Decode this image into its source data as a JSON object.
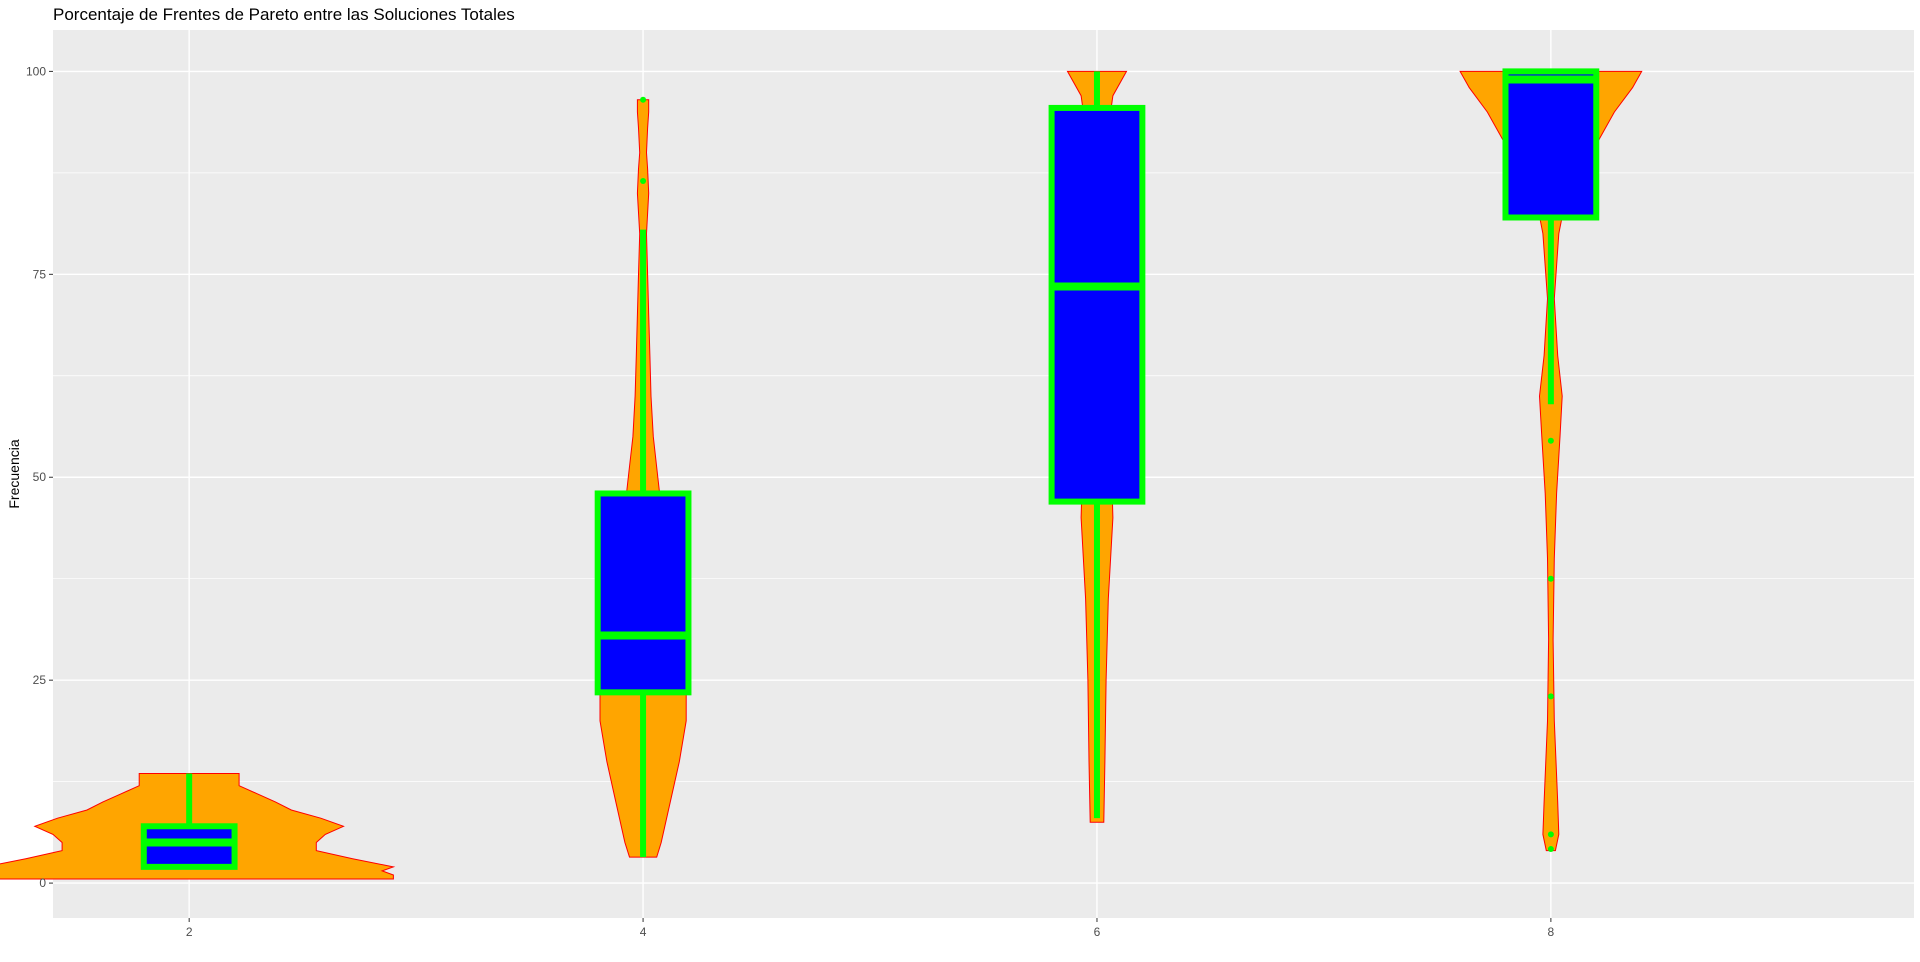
{
  "chart_data": {
    "type": "violin",
    "title": "Porcentaje de Frentes de Pareto entre las Soluciones Totales",
    "xlabel": "",
    "ylabel": "Frecuencia",
    "x_ticks": [
      "2",
      "4",
      "6",
      "8"
    ],
    "y_ticks": [
      "0",
      "25",
      "50",
      "75",
      "100"
    ],
    "xlim": [
      1.4,
      9.6
    ],
    "ylim": [
      -4.3,
      105.1
    ],
    "grid": true,
    "colors": {
      "panel_background": "#EBEBEB",
      "grid": "#FFFFFF",
      "violin_fill": "#FFA500",
      "violin_outline": "#FF0000",
      "box_fill": "#0000FF",
      "box_outline": "#00FF00",
      "outlier": "#00FF00"
    },
    "groups": [
      {
        "x": 2,
        "violin_range": [
          0.5,
          13.5
        ],
        "violin_halfwidth": [
          [
            0.5,
            0.9
          ],
          [
            1,
            0.9
          ],
          [
            1.5,
            0.85
          ],
          [
            2,
            0.9
          ],
          [
            3,
            0.72
          ],
          [
            4,
            0.56
          ],
          [
            5,
            0.56
          ],
          [
            6,
            0.6
          ],
          [
            7,
            0.68
          ],
          [
            8,
            0.58
          ],
          [
            9,
            0.45
          ],
          [
            10,
            0.38
          ],
          [
            11,
            0.3
          ],
          [
            12,
            0.22
          ],
          [
            13,
            0.22
          ],
          [
            13.5,
            0.22
          ]
        ],
        "box": {
          "lower": 2,
          "q1": 2,
          "median": 5,
          "q3": 7,
          "upper": 13.5
        },
        "outliers": []
      },
      {
        "x": 4,
        "violin_range": [
          3.2,
          96.5
        ],
        "violin_halfwidth": [
          [
            3.2,
            0.06
          ],
          [
            5,
            0.08
          ],
          [
            10,
            0.12
          ],
          [
            15,
            0.16
          ],
          [
            20,
            0.19
          ],
          [
            25,
            0.19
          ],
          [
            30,
            0.12
          ],
          [
            35,
            0.1
          ],
          [
            40,
            0.09
          ],
          [
            45,
            0.085
          ],
          [
            50,
            0.065
          ],
          [
            55,
            0.045
          ],
          [
            60,
            0.035
          ],
          [
            65,
            0.03
          ],
          [
            70,
            0.025
          ],
          [
            75,
            0.02
          ],
          [
            80,
            0.015
          ],
          [
            85,
            0.025
          ],
          [
            88,
            0.02
          ],
          [
            90,
            0.015
          ],
          [
            93,
            0.02
          ],
          [
            95,
            0.025
          ],
          [
            96.5,
            0.025
          ]
        ],
        "box": {
          "lower": 3.2,
          "q1": 23.5,
          "median": 30.5,
          "q3": 48,
          "upper": 80.5
        },
        "outliers": [
          86.5,
          96.5
        ]
      },
      {
        "x": 6,
        "violin_range": [
          7.5,
          100
        ],
        "violin_halfwidth": [
          [
            7.5,
            0.03
          ],
          [
            15,
            0.035
          ],
          [
            25,
            0.04
          ],
          [
            35,
            0.05
          ],
          [
            45,
            0.07
          ],
          [
            55,
            0.06
          ],
          [
            65,
            0.06
          ],
          [
            75,
            0.05
          ],
          [
            85,
            0.04
          ],
          [
            93,
            0.05
          ],
          [
            97,
            0.07
          ],
          [
            100,
            0.13
          ]
        ],
        "box": {
          "lower": 8,
          "q1": 47,
          "median": 73.5,
          "q3": 95.5,
          "upper": 100
        },
        "outliers": []
      },
      {
        "x": 8,
        "violin_range": [
          4,
          100
        ],
        "violin_halfwidth": [
          [
            4,
            0.02
          ],
          [
            6,
            0.035
          ],
          [
            10,
            0.03
          ],
          [
            20,
            0.015
          ],
          [
            30,
            0.01
          ],
          [
            40,
            0.015
          ],
          [
            48,
            0.025
          ],
          [
            55,
            0.04
          ],
          [
            60,
            0.05
          ],
          [
            65,
            0.03
          ],
          [
            72,
            0.015
          ],
          [
            80,
            0.035
          ],
          [
            85,
            0.07
          ],
          [
            90,
            0.18
          ],
          [
            95,
            0.28
          ],
          [
            98,
            0.36
          ],
          [
            100,
            0.4
          ]
        ],
        "box": {
          "lower": 59,
          "q1": 82,
          "median": 99,
          "q3": 100,
          "upper": 100
        },
        "outliers": [
          54.5,
          37.5,
          23,
          6,
          4.2
        ]
      }
    ]
  }
}
